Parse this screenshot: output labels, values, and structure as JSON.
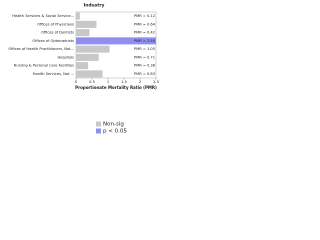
{
  "chart_data": {
    "type": "hbar",
    "title": "Industry",
    "categories": [
      "Health Services & Social Service...",
      "Offices of Physicians",
      "Offices of Dentists",
      "Offices of Optometrists",
      "Offices of Health Practitioners, Not...",
      "Hospitals",
      "Nursing & Personal Care Facilities",
      "Health Services, Not ..."
    ],
    "values": [
      0.12,
      0.64,
      0.42,
      2.5,
      1.05,
      0.71,
      0.38,
      0.83
    ],
    "value_labels": [
      "PMR = 0.12",
      "PMR = 0.64",
      "PMR = 0.42",
      "PMR = 2.50",
      "PMR = 1.05",
      "PMR = 0.71",
      "PMR = 0.38",
      "PMR = 0.83"
    ],
    "bar_colors": [
      "#c8c8c8",
      "#c8c8c8",
      "#c8c8c8",
      "#8f8ff2",
      "#c8c8c8",
      "#c8c8c8",
      "#c8c8c8",
      "#c8c8c8"
    ],
    "xlim": [
      0,
      2.5
    ],
    "xticks": [
      0,
      0.5,
      1,
      1.5,
      2,
      2.5
    ],
    "xlabel": "Proportionate Mortality Ratio (PMR)",
    "legend": [
      {
        "name": "Non-sig",
        "color": "#c8c8c8"
      },
      {
        "name": "p < 0.05",
        "color": "#8f8ff2"
      }
    ]
  }
}
